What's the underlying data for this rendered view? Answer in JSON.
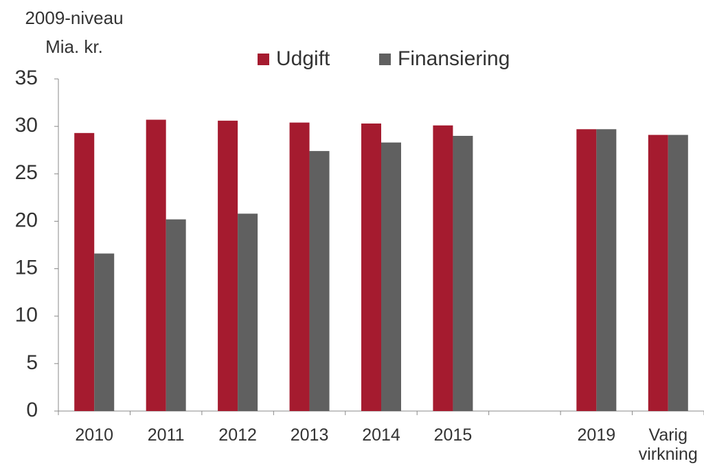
{
  "chart_data": {
    "type": "bar",
    "y_axis_label": [
      "2009-niveau",
      "Mia. kr."
    ],
    "categories": [
      "2010",
      "2011",
      "2012",
      "2013",
      "2014",
      "2015",
      null,
      "2019",
      "Varig virkning"
    ],
    "series": [
      {
        "name": "Udgift",
        "color": "#a51b2f",
        "values": [
          29.3,
          30.7,
          30.6,
          30.4,
          30.3,
          30.1,
          null,
          29.7,
          29.1
        ]
      },
      {
        "name": "Finansiering",
        "color": "#606060",
        "values": [
          16.6,
          20.2,
          20.8,
          27.4,
          28.3,
          29.0,
          null,
          29.7,
          29.1
        ]
      }
    ],
    "ylim": [
      0,
      35
    ],
    "yticks": [
      0,
      5,
      10,
      15,
      20,
      25,
      30,
      35
    ],
    "grid": false,
    "legend": "top"
  }
}
